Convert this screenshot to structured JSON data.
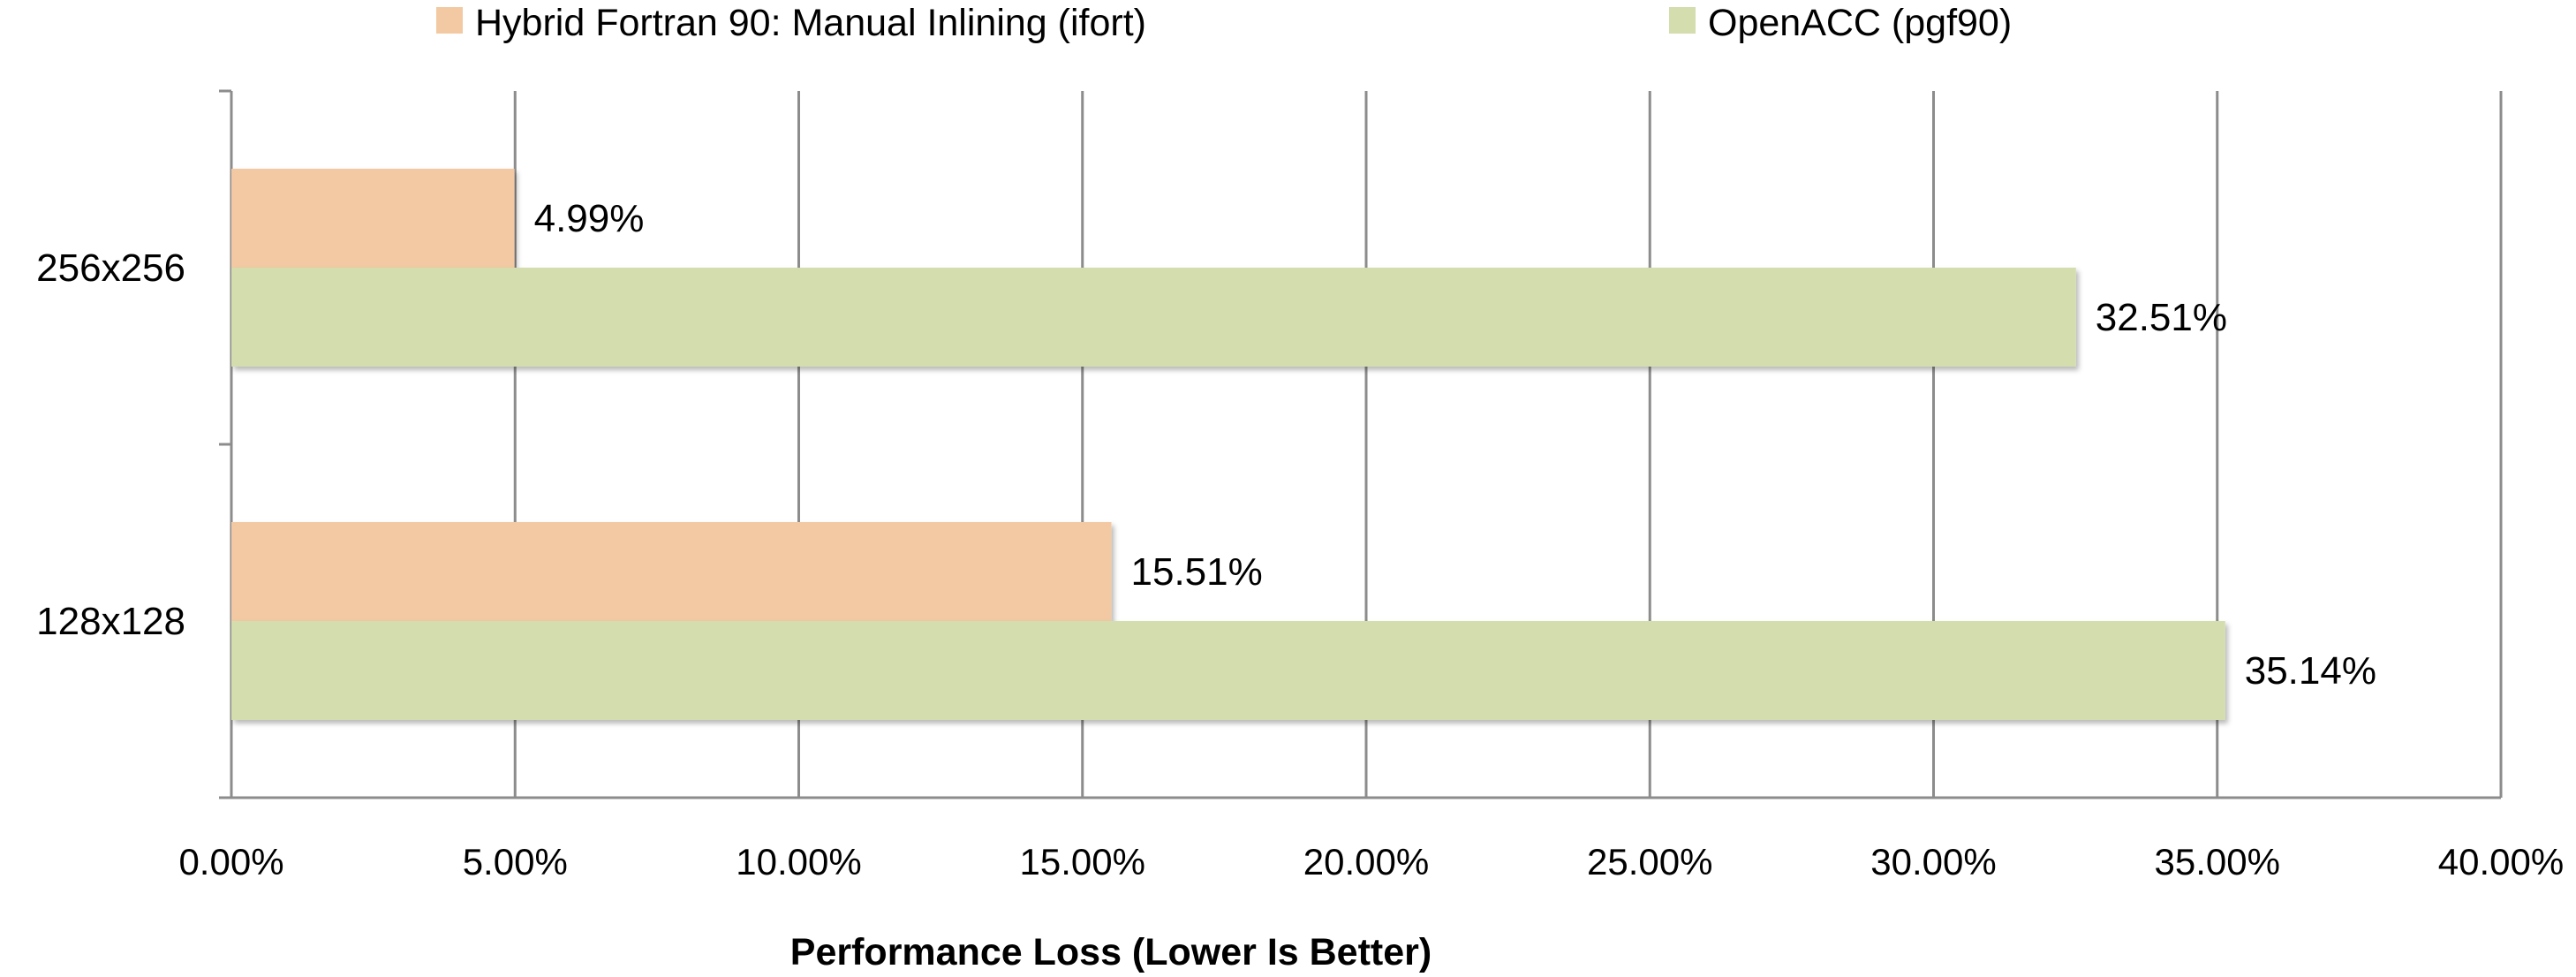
{
  "chart_data": {
    "type": "bar",
    "orientation": "horizontal",
    "categories": [
      "256x256",
      "128x128"
    ],
    "series": [
      {
        "name": "Hybrid Fortran 90: Manual Inlining (ifort)",
        "color": "#F2C9A2",
        "values": [
          4.99,
          15.51
        ],
        "labels": [
          "4.99%",
          "15.51%"
        ]
      },
      {
        "name": "OpenACC (pgf90)",
        "color": "#D3DDAE",
        "values": [
          32.51,
          35.14
        ],
        "labels": [
          "32.51%",
          "35.14%"
        ]
      }
    ],
    "xlim": [
      0,
      40
    ],
    "xticks": [
      0,
      5,
      10,
      15,
      20,
      25,
      30,
      35,
      40
    ],
    "xtick_labels": [
      "0.00%",
      "5.00%",
      "10.00%",
      "15.00%",
      "20.00%",
      "25.00%",
      "30.00%",
      "35.00%",
      "40.00%"
    ],
    "xlabel": "Performance Loss (Lower Is Better)",
    "ylabel": "",
    "title": "",
    "grid": "vertical",
    "legend_position": "top"
  }
}
